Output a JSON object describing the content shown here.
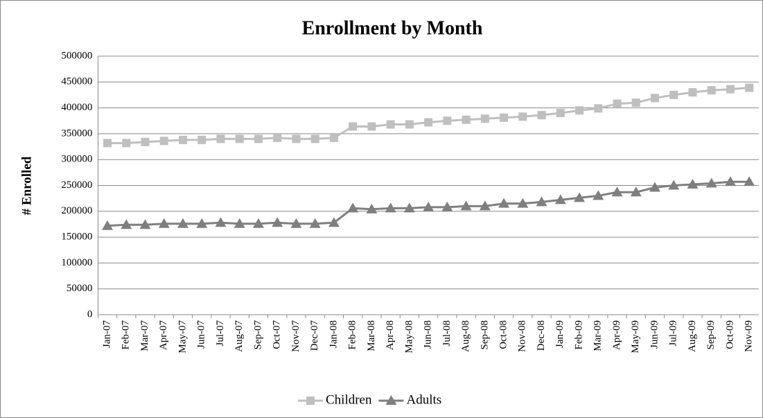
{
  "chart_data": {
    "type": "line",
    "title": "Enrollment by Month",
    "y_label": "# Enrolled",
    "categories": [
      "Jan-07",
      "Feb-07",
      "Mar-07",
      "Apr-07",
      "May-07",
      "Jun-07",
      "Jul-07",
      "Aug-07",
      "Sep-07",
      "Oct-07",
      "Nov-07",
      "Dec-07",
      "Jan-08",
      "Feb-08",
      "Mar-08",
      "Apr-08",
      "May-08",
      "Jun-08",
      "Jul-08",
      "Aug-08",
      "Sep-08",
      "Oct-08",
      "Nov-08",
      "Dec-08",
      "Jan-09",
      "Feb-09",
      "Mar-09",
      "Apr-09",
      "May-09",
      "Jun-09",
      "Jul-09",
      "Aug-09",
      "Sep-09",
      "Oct-09",
      "Nov-09"
    ],
    "series": [
      {
        "name": "Children",
        "color": "#bfbfbf",
        "marker": "square",
        "values": [
          332000,
          332000,
          334000,
          336000,
          338000,
          338000,
          340000,
          340000,
          340000,
          342000,
          340000,
          340000,
          342000,
          364000,
          364000,
          368000,
          368000,
          372000,
          375000,
          377000,
          379000,
          381000,
          383000,
          386000,
          390000,
          395000,
          399000,
          408000,
          410000,
          419000,
          425000,
          430000,
          434000,
          436000,
          439000
        ]
      },
      {
        "name": "Adults",
        "color": "#7f7f7f",
        "marker": "triangle",
        "values": [
          172000,
          174000,
          174000,
          176000,
          176000,
          176000,
          178000,
          176000,
          176000,
          178000,
          176000,
          176000,
          178000,
          206000,
          204000,
          206000,
          206000,
          208000,
          208000,
          210000,
          210000,
          215000,
          215000,
          218000,
          222000,
          226000,
          230000,
          237000,
          237000,
          246000,
          250000,
          252000,
          254000,
          257000,
          257000
        ]
      }
    ],
    "ylim": [
      0,
      500000
    ],
    "yticks": [
      0,
      50000,
      100000,
      150000,
      200000,
      250000,
      300000,
      350000,
      400000,
      450000,
      500000
    ],
    "grid": true,
    "legend": "bottom"
  }
}
